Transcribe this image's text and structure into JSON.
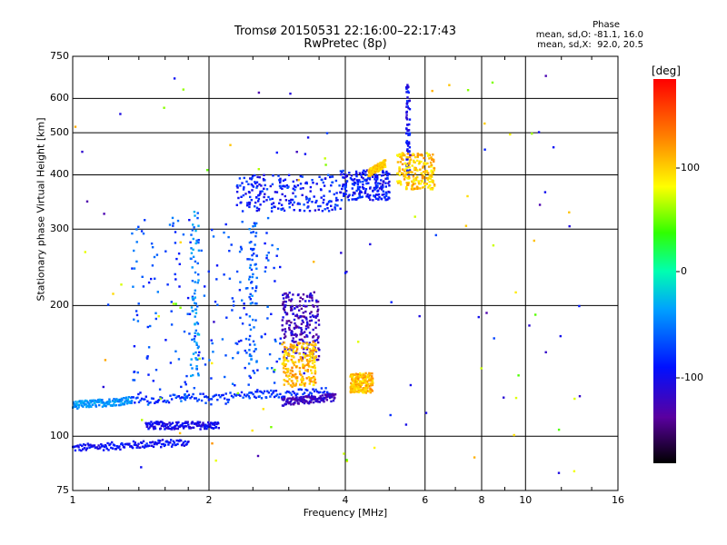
{
  "header": {
    "title_line1": "Tromsø 20150531 22:16:00–22:17:43",
    "title_line2": "RwPretec (8p)"
  },
  "phase_info": {
    "heading": "Phase",
    "line1": "mean, sd,O: -81.1, 16.0",
    "line2": "mean, sd,X:  92.0, 20.5"
  },
  "colorbar": {
    "unit_label": "[deg]",
    "tick_labels": [
      "100",
      "0",
      "-100"
    ]
  },
  "chart_data": {
    "type": "scatter",
    "xlabel": "Frequency [MHz]",
    "ylabel": "Stationary phase Virtual Height [km]",
    "xscale": "log",
    "yscale": "log",
    "xlim": [
      1,
      16
    ],
    "ylim": [
      75,
      750
    ],
    "x_ticks": [
      1,
      2,
      4,
      6,
      8,
      10,
      16
    ],
    "x_tick_labels": [
      "1",
      "2",
      "4",
      "6",
      "8",
      "10",
      "16"
    ],
    "y_ticks": [
      75,
      100,
      200,
      300,
      400,
      500,
      600,
      750
    ],
    "y_tick_labels": [
      "75",
      "100",
      "200",
      "300",
      "400",
      "500",
      "600",
      "750"
    ],
    "grid": true,
    "colorbar_range": [
      -180,
      180
    ],
    "colorbar_ticks": [
      100,
      0,
      -100
    ],
    "series": [
      {
        "kind": "trace",
        "color_phase": -95,
        "freq_range": [
          1.0,
          1.8
        ],
        "height_range": [
          94,
          97
        ]
      },
      {
        "kind": "trace",
        "color_phase": -100,
        "freq_range": [
          1.45,
          2.1
        ],
        "height_range": [
          106,
          106
        ]
      },
      {
        "kind": "trace",
        "color_phase": -40,
        "freq_range": [
          1.0,
          1.35
        ],
        "height_range": [
          118,
          121
        ]
      },
      {
        "kind": "trace",
        "color_phase": -80,
        "freq_range": [
          1.35,
          3.7
        ],
        "height_range": [
          121,
          127
        ]
      },
      {
        "kind": "cloud",
        "color_phase": -70,
        "freq_range": [
          1.35,
          2.9
        ],
        "height_range": [
          118,
          320
        ]
      },
      {
        "kind": "column",
        "color_phase": -45,
        "freq_range": [
          1.82,
          1.9
        ],
        "height_range": [
          135,
          330
        ]
      },
      {
        "kind": "column",
        "color_phase": -60,
        "freq_range": [
          2.45,
          2.55
        ],
        "height_range": [
          140,
          310
        ]
      },
      {
        "kind": "trace",
        "color_phase": -120,
        "freq_range": [
          2.9,
          3.8
        ],
        "height_range": [
          120,
          123
        ]
      },
      {
        "kind": "cloud",
        "color_phase": -120,
        "freq_range": [
          2.9,
          3.5
        ],
        "height_range": [
          150,
          215
        ]
      },
      {
        "kind": "cloud",
        "color_phase": 105,
        "freq_range": [
          2.9,
          3.45
        ],
        "height_range": [
          130,
          165
        ]
      },
      {
        "kind": "cloud",
        "color_phase": -85,
        "freq_range": [
          2.3,
          3.9
        ],
        "height_range": [
          330,
          400
        ]
      },
      {
        "kind": "cloud",
        "color_phase": -90,
        "freq_range": [
          3.9,
          5.0
        ],
        "height_range": [
          350,
          410
        ]
      },
      {
        "kind": "trace",
        "color_phase": 100,
        "freq_range": [
          4.5,
          4.9
        ],
        "height_range": [
          405,
          425
        ]
      },
      {
        "kind": "column",
        "color_phase": -95,
        "freq_range": [
          5.45,
          5.55
        ],
        "height_range": [
          400,
          650
        ]
      },
      {
        "kind": "cloud",
        "color_phase": 100,
        "freq_range": [
          5.2,
          6.3
        ],
        "height_range": [
          370,
          450
        ]
      },
      {
        "kind": "cloud",
        "color_phase": 105,
        "freq_range": [
          4.1,
          4.6
        ],
        "height_range": [
          126,
          140
        ]
      },
      {
        "kind": "scatter",
        "color_phase": 0,
        "freq_range": [
          1.0,
          14.0
        ],
        "height_range": [
          78,
          700
        ]
      }
    ]
  }
}
